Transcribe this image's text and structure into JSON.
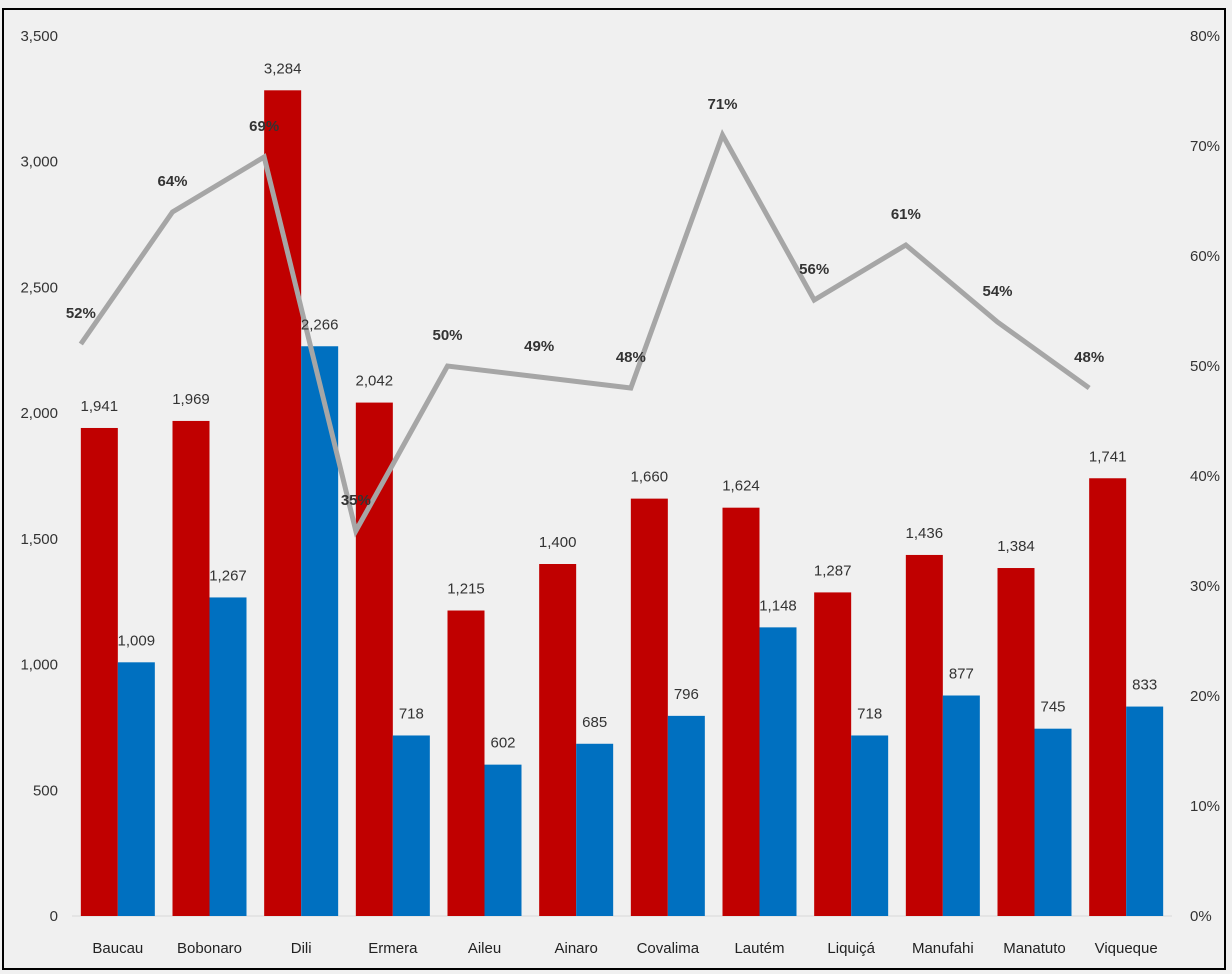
{
  "chart_data": {
    "type": "bar",
    "categories": [
      "Baucau",
      "Bobonaro",
      "Dili",
      "Ermera",
      "Aileu",
      "Ainaro",
      "Covalima",
      "Lautém",
      "Liquiçá",
      "Manufahi",
      "Manatuto",
      "Viqueque"
    ],
    "series": [
      {
        "type": "bar",
        "axis": "left",
        "color": "#c00000",
        "values": [
          1941,
          1969,
          3284,
          2042,
          1215,
          1400,
          1660,
          1624,
          1287,
          1436,
          1384,
          1741
        ],
        "labels": [
          "1,941",
          "1,969",
          "3,284",
          "2,042",
          "1,215",
          "1,400",
          "1,660",
          "1,624",
          "1,287",
          "1,436",
          "1,384",
          "1,741"
        ]
      },
      {
        "type": "bar",
        "axis": "left",
        "color": "#0070c0",
        "values": [
          1009,
          1267,
          2266,
          718,
          602,
          685,
          796,
          1148,
          718,
          877,
          745,
          833
        ],
        "labels": [
          "1,009",
          "1,267",
          "2,266",
          "718",
          "602",
          "685",
          "796",
          "1,148",
          "718",
          "877",
          "745",
          "833"
        ]
      },
      {
        "type": "line",
        "axis": "right",
        "color": "#a6a6a6",
        "values": [
          52,
          64,
          69,
          35,
          50,
          49,
          48,
          71,
          56,
          61,
          54,
          48
        ],
        "labels": [
          "52%",
          "64%",
          "69%",
          "35%",
          "50%",
          "49%",
          "48%",
          "71%",
          "56%",
          "61%",
          "54%",
          "48%"
        ]
      }
    ],
    "ylim": [
      0,
      3500
    ],
    "y_ticks": [
      "0",
      "500",
      "1,000",
      "1,500",
      "2,000",
      "2,500",
      "3,000",
      "3,500"
    ],
    "y2lim": [
      0,
      80
    ],
    "y2_ticks": [
      "0%",
      "10%",
      "20%",
      "30%",
      "40%",
      "50%",
      "60%",
      "70%",
      "80%"
    ],
    "title": "",
    "xlabel": "",
    "ylabel": "",
    "legend": "none",
    "grid": false
  }
}
